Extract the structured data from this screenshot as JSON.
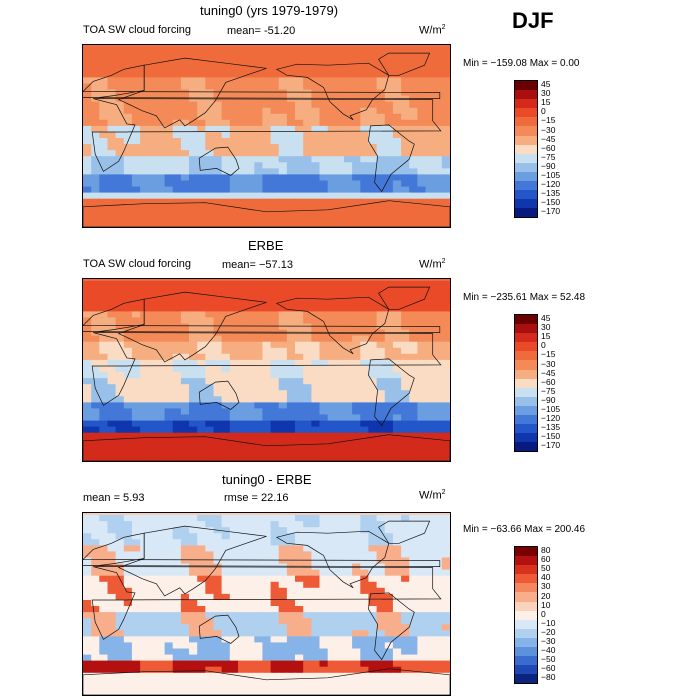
{
  "season": "DJF",
  "panels": [
    {
      "title": "tuning0 (yrs 1979-1979)",
      "variable": "TOA SW cloud forcing",
      "mean_text": "mean= -51.20",
      "units": "W/m",
      "units_exp": "2",
      "minmax": "Min = −159.08 Max =    0.00",
      "levels": [
        "45",
        "30",
        "15",
        "0",
        "−15",
        "−30",
        "−45",
        "−60",
        "−75",
        "−90",
        "−105",
        "−120",
        "−135",
        "−150",
        "−170"
      ],
      "colors": [
        "#6a0000",
        "#a90f0f",
        "#d32a1b",
        "#ea4a28",
        "#f06b3b",
        "#f38a58",
        "#f6ad80",
        "#fadcc4",
        "#c8e0f0",
        "#98c0e8",
        "#6a9ee0",
        "#4478d8",
        "#2356c8",
        "#0f36ac",
        "#061a80"
      ],
      "bg": "#ed6e43"
    },
    {
      "title": "ERBE",
      "variable": "TOA SW cloud forcing",
      "mean_text": "mean= −57.13",
      "units": "W/m",
      "units_exp": "2",
      "minmax": "Min = −235.61 Max =  52.48",
      "levels": [
        "45",
        "30",
        "15",
        "0",
        "−15",
        "−30",
        "−45",
        "−60",
        "−75",
        "−90",
        "−105",
        "−120",
        "−135",
        "−150",
        "−170"
      ],
      "colors": [
        "#6a0000",
        "#a90f0f",
        "#d32a1b",
        "#ea4a28",
        "#f06b3b",
        "#f38a58",
        "#f6ad80",
        "#fadcc4",
        "#c8e0f0",
        "#98c0e8",
        "#6a9ee0",
        "#4478d8",
        "#2356c8",
        "#0f36ac",
        "#061a80"
      ],
      "bg": "#ec6a40"
    },
    {
      "title": "tuning0 - ERBE",
      "mean_text": "mean =    5.93",
      "rmse_text": "rmse =   22.16",
      "units": "W/m",
      "units_exp": "2",
      "minmax": "Min = −63.66 Max = 200.46",
      "levels": [
        "80",
        "60",
        "50",
        "40",
        "30",
        "20",
        "10",
        "0",
        "−10",
        "−20",
        "−30",
        "−40",
        "−50",
        "−60",
        "−80"
      ],
      "colors": [
        "#7a0000",
        "#b51010",
        "#d8321e",
        "#ee5a36",
        "#f5875e",
        "#f8ae8a",
        "#fbd3bd",
        "#fdf0e8",
        "#d8e8f6",
        "#b0d0f0",
        "#86b4e8",
        "#5c92dc",
        "#3a6cd0",
        "#1e48b4",
        "#0a2480"
      ],
      "bg": "#f7cdb6"
    }
  ],
  "chart_data": [
    {
      "type": "heatmap",
      "title": "tuning0 (yrs 1979-1979)",
      "variable": "TOA SW cloud forcing",
      "units": "W/m2",
      "season": "DJF",
      "mean": -51.2,
      "min": -159.08,
      "max": 0.0,
      "levels": [
        45,
        30,
        15,
        0,
        -15,
        -30,
        -45,
        -60,
        -75,
        -90,
        -105,
        -120,
        -135,
        -150,
        -170
      ]
    },
    {
      "type": "heatmap",
      "title": "ERBE",
      "variable": "TOA SW cloud forcing",
      "units": "W/m2",
      "season": "DJF",
      "mean": -57.13,
      "min": -235.61,
      "max": 52.48,
      "levels": [
        45,
        30,
        15,
        0,
        -15,
        -30,
        -45,
        -60,
        -75,
        -90,
        -105,
        -120,
        -135,
        -150,
        -170
      ]
    },
    {
      "type": "heatmap",
      "title": "tuning0 - ERBE",
      "units": "W/m2",
      "season": "DJF",
      "mean": 5.93,
      "rmse": 22.16,
      "min": -63.66,
      "max": 200.46,
      "levels": [
        80,
        60,
        50,
        40,
        30,
        20,
        10,
        0,
        -10,
        -20,
        -30,
        -40,
        -50,
        -60,
        -80
      ]
    }
  ]
}
